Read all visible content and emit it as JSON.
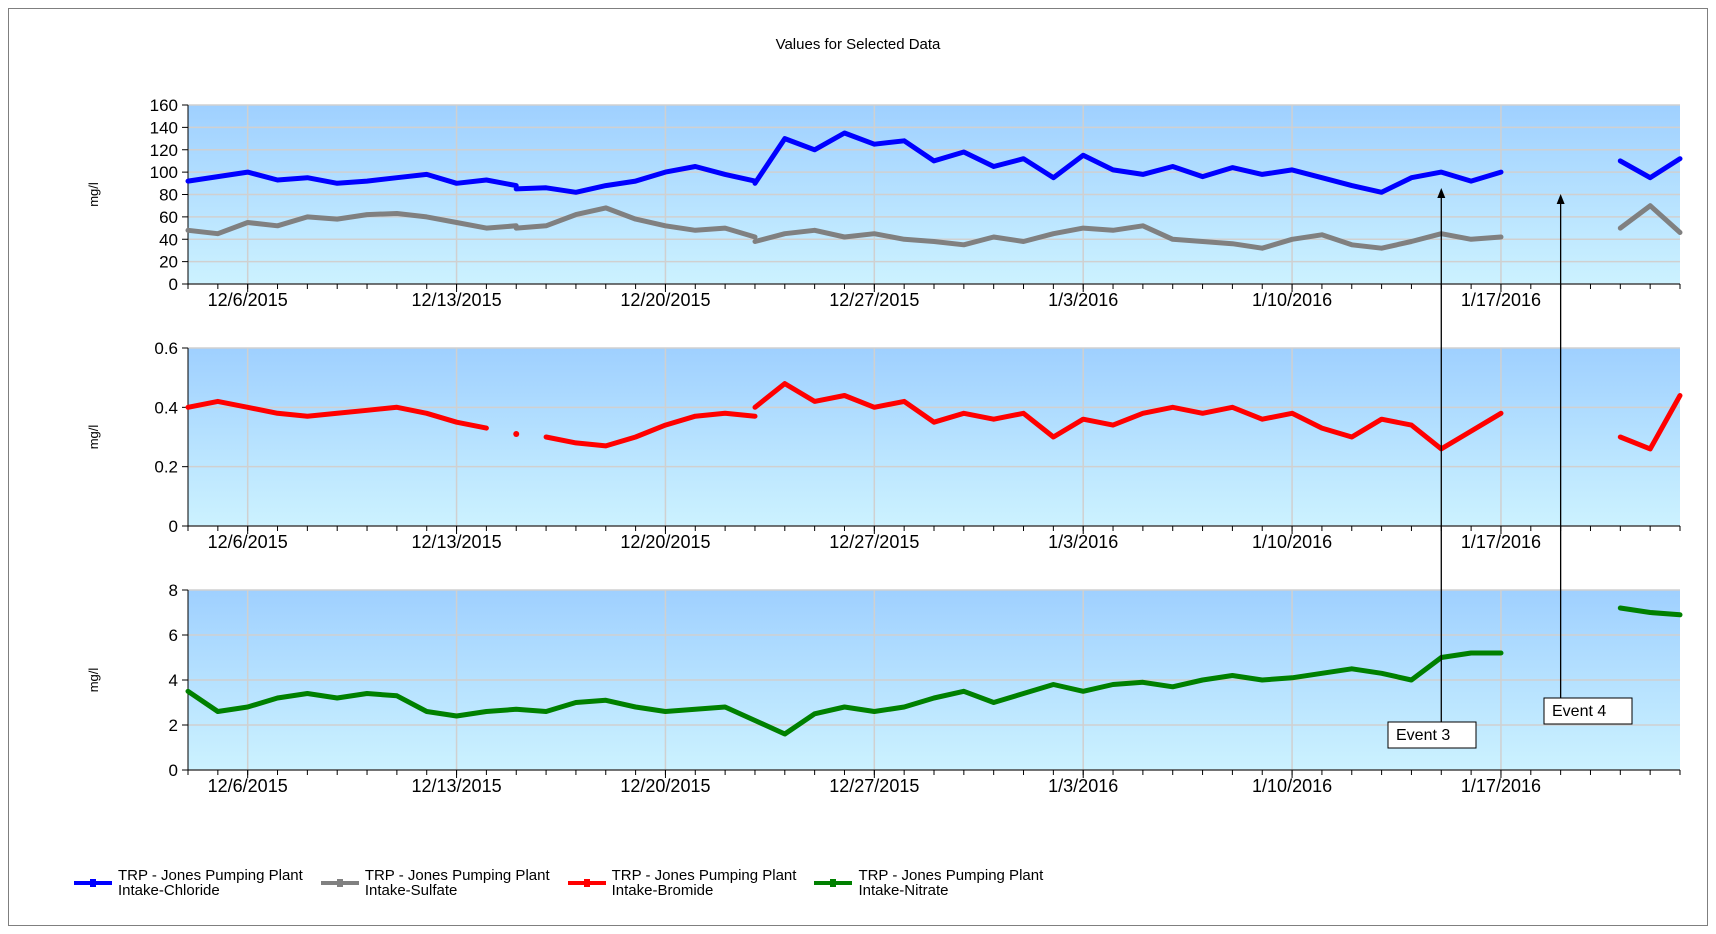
{
  "chart_title": "Values for Selected Data",
  "legend": [
    {
      "label": "TRP - Jones Pumping Plant\nIntake-Chloride",
      "color": "#0000ff"
    },
    {
      "label": "TRP - Jones Pumping Plant\nIntake-Sulfate",
      "color": "#808080"
    },
    {
      "label": "TRP - Jones Pumping Plant\nIntake-Bromide",
      "color": "#ff0000"
    },
    {
      "label": "TRP - Jones Pumping Plant\nIntake-Nitrate",
      "color": "#008000"
    }
  ],
  "chart_data": [
    {
      "type": "line",
      "ylabel": "mg/l",
      "ylim": [
        0,
        160
      ],
      "yticks": [
        "0",
        "20",
        "40",
        "60",
        "80",
        "100",
        "120",
        "140",
        "160"
      ],
      "xticks": [
        "12/6/2015",
        "12/13/2015",
        "12/20/2015",
        "12/27/2015",
        "1/3/2016",
        "1/10/2016",
        "1/17/2016"
      ],
      "xrange": [
        "12/4/2015",
        "1/22/2016"
      ],
      "grid": true,
      "series": [
        {
          "name": "TRP - Jones Pumping Plant\nIntake-Chloride",
          "color": "#0000ff",
          "points": [
            [
              "12/4/2015",
              92
            ],
            [
              "12/5/2015",
              96
            ],
            [
              "12/6/2015",
              100
            ],
            [
              "12/7/2015",
              93
            ],
            [
              "12/8/2015",
              95
            ],
            [
              "12/9/2015",
              90
            ],
            [
              "12/10/2015",
              92
            ],
            [
              "12/11/2015",
              95
            ],
            [
              "12/12/2015",
              98
            ],
            [
              "12/13/2015",
              90
            ],
            [
              "12/14/2015",
              93
            ],
            [
              "12/15/2015",
              88
            ],
            null,
            [
              "12/15/2015",
              85
            ],
            [
              "12/16/2015",
              86
            ],
            [
              "12/17/2015",
              82
            ],
            [
              "12/18/2015",
              88
            ],
            [
              "12/19/2015",
              92
            ],
            [
              "12/20/2015",
              100
            ],
            [
              "12/21/2015",
              105
            ],
            [
              "12/22/2015",
              98
            ],
            [
              "12/23/2015",
              92
            ],
            null,
            [
              "12/23/2015",
              90
            ],
            [
              "12/24/2015",
              130
            ],
            [
              "12/25/2015",
              120
            ],
            [
              "12/26/2015",
              135
            ],
            [
              "12/27/2015",
              125
            ],
            [
              "12/28/2015",
              128
            ],
            [
              "12/29/2015",
              110
            ],
            [
              "12/30/2015",
              118
            ],
            [
              "12/31/2015",
              105
            ],
            [
              "1/1/2016",
              112
            ],
            [
              "1/2/2016",
              95
            ],
            [
              "1/3/2016",
              115
            ],
            [
              "1/4/2016",
              102
            ],
            [
              "1/5/2016",
              98
            ],
            [
              "1/6/2016",
              105
            ],
            [
              "1/7/2016",
              96
            ],
            [
              "1/8/2016",
              104
            ],
            [
              "1/9/2016",
              98
            ],
            [
              "1/10/2016",
              102
            ],
            [
              "1/11/2016",
              95
            ],
            [
              "1/12/2016",
              88
            ],
            [
              "1/13/2016",
              82
            ],
            [
              "1/14/2016",
              95
            ],
            [
              "1/15/2016",
              100
            ],
            [
              "1/16/2016",
              92
            ],
            [
              "1/17/2016",
              100
            ],
            null,
            [
              "1/21/2016",
              110
            ],
            [
              "1/22/2016",
              95
            ],
            [
              "1/23/2016",
              112
            ]
          ]
        },
        {
          "name": "TRP - Jones Pumping Plant\nIntake-Sulfate",
          "color": "#808080",
          "points": [
            [
              "12/4/2015",
              48
            ],
            [
              "12/5/2015",
              45
            ],
            [
              "12/6/2015",
              55
            ],
            [
              "12/7/2015",
              52
            ],
            [
              "12/8/2015",
              60
            ],
            [
              "12/9/2015",
              58
            ],
            [
              "12/10/2015",
              62
            ],
            [
              "12/11/2015",
              63
            ],
            [
              "12/12/2015",
              60
            ],
            [
              "12/13/2015",
              55
            ],
            [
              "12/14/2015",
              50
            ],
            [
              "12/15/2015",
              52
            ],
            null,
            [
              "12/15/2015",
              50
            ],
            [
              "12/16/2015",
              52
            ],
            [
              "12/17/2015",
              62
            ],
            [
              "12/18/2015",
              68
            ],
            [
              "12/19/2015",
              58
            ],
            [
              "12/20/2015",
              52
            ],
            [
              "12/21/2015",
              48
            ],
            [
              "12/22/2015",
              50
            ],
            [
              "12/23/2015",
              42
            ],
            null,
            [
              "12/23/2015",
              38
            ],
            [
              "12/24/2015",
              45
            ],
            [
              "12/25/2015",
              48
            ],
            [
              "12/26/2015",
              42
            ],
            [
              "12/27/2015",
              45
            ],
            [
              "12/28/2015",
              40
            ],
            [
              "12/29/2015",
              38
            ],
            [
              "12/30/2015",
              35
            ],
            [
              "12/31/2015",
              42
            ],
            [
              "1/1/2016",
              38
            ],
            [
              "1/2/2016",
              45
            ],
            [
              "1/3/2016",
              50
            ],
            [
              "1/4/2016",
              48
            ],
            [
              "1/5/2016",
              52
            ],
            [
              "1/6/2016",
              40
            ],
            [
              "1/7/2016",
              38
            ],
            [
              "1/8/2016",
              36
            ],
            [
              "1/9/2016",
              32
            ],
            [
              "1/10/2016",
              40
            ],
            [
              "1/11/2016",
              44
            ],
            [
              "1/12/2016",
              35
            ],
            [
              "1/13/2016",
              32
            ],
            [
              "1/14/2016",
              38
            ],
            [
              "1/15/2016",
              45
            ],
            [
              "1/16/2016",
              40
            ],
            [
              "1/17/2016",
              42
            ],
            null,
            [
              "1/21/2016",
              50
            ],
            [
              "1/22/2016",
              70
            ],
            [
              "1/23/2016",
              46
            ]
          ]
        }
      ],
      "annotations": []
    },
    {
      "type": "line",
      "ylabel": "mg/l",
      "ylim": [
        0,
        0.6
      ],
      "yticks": [
        "0",
        "0.2",
        "0.4",
        "0.6"
      ],
      "xticks": [
        "12/6/2015",
        "12/13/2015",
        "12/20/2015",
        "12/27/2015",
        "1/3/2016",
        "1/10/2016",
        "1/17/2016"
      ],
      "xrange": [
        "12/4/2015",
        "1/22/2016"
      ],
      "grid": true,
      "series": [
        {
          "name": "TRP - Jones Pumping Plant\nIntake-Bromide",
          "color": "#ff0000",
          "points": [
            [
              "12/4/2015",
              0.4
            ],
            [
              "12/5/2015",
              0.42
            ],
            [
              "12/6/2015",
              0.4
            ],
            [
              "12/7/2015",
              0.38
            ],
            [
              "12/8/2015",
              0.37
            ],
            [
              "12/9/2015",
              0.38
            ],
            [
              "12/10/2015",
              0.39
            ],
            [
              "12/11/2015",
              0.4
            ],
            [
              "12/12/2015",
              0.38
            ],
            [
              "12/13/2015",
              0.35
            ],
            [
              "12/14/2015",
              0.33
            ],
            null,
            [
              "12/15/2015",
              0.31
            ],
            null,
            [
              "12/16/2015",
              0.3
            ],
            [
              "12/17/2015",
              0.28
            ],
            [
              "12/18/2015",
              0.27
            ],
            [
              "12/19/2015",
              0.3
            ],
            [
              "12/20/2015",
              0.34
            ],
            [
              "12/21/2015",
              0.37
            ],
            [
              "12/22/2015",
              0.38
            ],
            [
              "12/23/2015",
              0.37
            ],
            null,
            [
              "12/23/2015",
              0.4
            ],
            [
              "12/24/2015",
              0.48
            ],
            [
              "12/25/2015",
              0.42
            ],
            [
              "12/26/2015",
              0.44
            ],
            [
              "12/27/2015",
              0.4
            ],
            [
              "12/28/2015",
              0.42
            ],
            [
              "12/29/2015",
              0.35
            ],
            [
              "12/30/2015",
              0.38
            ],
            [
              "12/31/2015",
              0.36
            ],
            [
              "1/1/2016",
              0.38
            ],
            [
              "1/2/2016",
              0.3
            ],
            [
              "1/3/2016",
              0.36
            ],
            [
              "1/4/2016",
              0.34
            ],
            [
              "1/5/2016",
              0.38
            ],
            [
              "1/6/2016",
              0.4
            ],
            [
              "1/7/2016",
              0.38
            ],
            [
              "1/8/2016",
              0.4
            ],
            [
              "1/9/2016",
              0.36
            ],
            [
              "1/10/2016",
              0.38
            ],
            [
              "1/11/2016",
              0.33
            ],
            [
              "1/12/2016",
              0.3
            ],
            [
              "1/13/2016",
              0.36
            ],
            [
              "1/14/2016",
              0.34
            ],
            [
              "1/15/2016",
              0.26
            ],
            [
              "1/16/2016",
              0.32
            ],
            [
              "1/17/2016",
              0.38
            ],
            null,
            [
              "1/21/2016",
              0.3
            ],
            [
              "1/22/2016",
              0.26
            ],
            [
              "1/23/2016",
              0.44
            ]
          ]
        }
      ],
      "annotations": []
    },
    {
      "type": "line",
      "ylabel": "mg/l",
      "ylim": [
        0,
        8
      ],
      "yticks": [
        "0",
        "2",
        "4",
        "6",
        "8"
      ],
      "xticks": [
        "12/6/2015",
        "12/13/2015",
        "12/20/2015",
        "12/27/2015",
        "1/3/2016",
        "1/10/2016",
        "1/17/2016"
      ],
      "xrange": [
        "12/4/2015",
        "1/22/2016"
      ],
      "grid": true,
      "series": [
        {
          "name": "TRP - Jones Pumping Plant\nIntake-Nitrate",
          "color": "#008000",
          "points": [
            [
              "12/4/2015",
              3.5
            ],
            [
              "12/5/2015",
              2.6
            ],
            [
              "12/6/2015",
              2.8
            ],
            [
              "12/7/2015",
              3.2
            ],
            [
              "12/8/2015",
              3.4
            ],
            [
              "12/9/2015",
              3.2
            ],
            [
              "12/10/2015",
              3.4
            ],
            [
              "12/11/2015",
              3.3
            ],
            [
              "12/12/2015",
              2.6
            ],
            [
              "12/13/2015",
              2.4
            ],
            [
              "12/14/2015",
              2.6
            ],
            [
              "12/15/2015",
              2.7
            ],
            [
              "12/16/2015",
              2.6
            ],
            [
              "12/17/2015",
              3.0
            ],
            [
              "12/18/2015",
              3.1
            ],
            [
              "12/19/2015",
              2.8
            ],
            [
              "12/20/2015",
              2.6
            ],
            [
              "12/21/2015",
              2.7
            ],
            [
              "12/22/2015",
              2.8
            ],
            [
              "12/23/2015",
              2.2
            ],
            [
              "12/24/2015",
              1.6
            ],
            [
              "12/25/2015",
              2.5
            ],
            [
              "12/26/2015",
              2.8
            ],
            [
              "12/27/2015",
              2.6
            ],
            [
              "12/28/2015",
              2.8
            ],
            [
              "12/29/2015",
              3.2
            ],
            [
              "12/30/2015",
              3.5
            ],
            [
              "12/31/2015",
              3.0
            ],
            [
              "1/1/2016",
              3.4
            ],
            [
              "1/2/2016",
              3.8
            ],
            [
              "1/3/2016",
              3.5
            ],
            [
              "1/4/2016",
              3.8
            ],
            [
              "1/5/2016",
              3.9
            ],
            [
              "1/6/2016",
              3.7
            ],
            [
              "1/7/2016",
              4.0
            ],
            [
              "1/8/2016",
              4.2
            ],
            [
              "1/9/2016",
              4.0
            ],
            [
              "1/10/2016",
              4.1
            ],
            [
              "1/11/2016",
              4.3
            ],
            [
              "1/12/2016",
              4.5
            ],
            [
              "1/13/2016",
              4.3
            ],
            [
              "1/14/2016",
              4.0
            ],
            [
              "1/15/2016",
              5.0
            ],
            [
              "1/16/2016",
              5.2
            ],
            [
              "1/17/2016",
              5.2
            ],
            null,
            [
              "1/21/2016",
              7.2
            ],
            [
              "1/22/2016",
              7.0
            ],
            [
              "1/23/2016",
              6.9
            ]
          ]
        }
      ],
      "annotations": [
        {
          "label": "Event 3",
          "date": "1/15/2016"
        },
        {
          "label": "Event 4",
          "date": "1/19/2016"
        }
      ]
    }
  ]
}
